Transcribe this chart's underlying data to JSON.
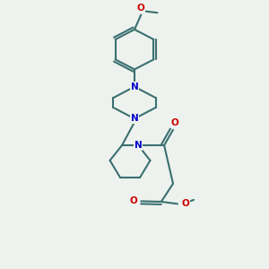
{
  "bg_color": "#eef2ee",
  "bond_color": "#3a7070",
  "N_color": "#0000cc",
  "O_color": "#cc0000",
  "lw": 1.5,
  "fs": 7.5,
  "fig_w": 3.0,
  "fig_h": 3.0,
  "dpi": 100,
  "xlim": [
    0.05,
    0.95
  ],
  "ylim": [
    0.02,
    1.02
  ]
}
